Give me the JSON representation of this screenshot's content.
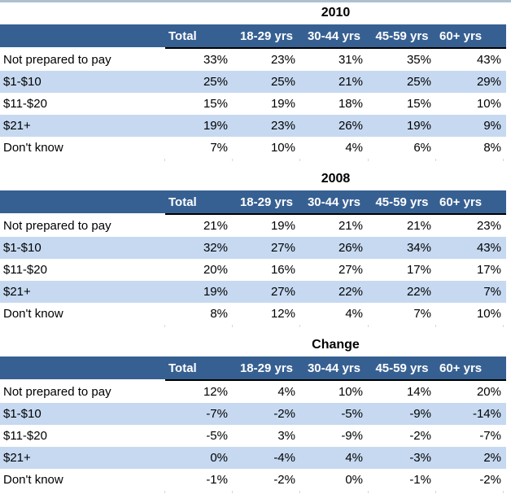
{
  "styles": {
    "header_bg": "#376092",
    "header_text": "#FFFFFF",
    "stripe_bg": "#C6D9F1",
    "top_strip": "#AEBFD0"
  },
  "chart_data": [
    {
      "type": "table",
      "title": "2010",
      "columns": [
        "Total",
        "18-29 yrs",
        "30-44 yrs",
        "45-59 yrs",
        "60+ yrs"
      ],
      "row_labels": [
        "Not prepared to pay",
        "$1-$10",
        "$11-$20",
        "$21+",
        "Don't know"
      ],
      "rows": [
        [
          "33%",
          "23%",
          "31%",
          "35%",
          "43%"
        ],
        [
          "25%",
          "25%",
          "21%",
          "25%",
          "29%"
        ],
        [
          "15%",
          "19%",
          "18%",
          "15%",
          "10%"
        ],
        [
          "19%",
          "23%",
          "26%",
          "19%",
          "9%"
        ],
        [
          "7%",
          "10%",
          "4%",
          "6%",
          "8%"
        ]
      ]
    },
    {
      "type": "table",
      "title": "2008",
      "columns": [
        "Total",
        "18-29 yrs",
        "30-44 yrs",
        "45-59 yrs",
        "60+ yrs"
      ],
      "row_labels": [
        "Not prepared to pay",
        "$1-$10",
        "$11-$20",
        "$21+",
        "Don't know"
      ],
      "rows": [
        [
          "21%",
          "19%",
          "21%",
          "21%",
          "23%"
        ],
        [
          "32%",
          "27%",
          "26%",
          "34%",
          "43%"
        ],
        [
          "20%",
          "16%",
          "27%",
          "17%",
          "17%"
        ],
        [
          "19%",
          "27%",
          "22%",
          "22%",
          "7%"
        ],
        [
          "8%",
          "12%",
          "4%",
          "7%",
          "10%"
        ]
      ]
    },
    {
      "type": "table",
      "title": "Change",
      "columns": [
        "Total",
        "18-29 yrs",
        "30-44 yrs",
        "45-59 yrs",
        "60+ yrs"
      ],
      "row_labels": [
        "Not prepared to pay",
        "$1-$10",
        "$11-$20",
        "$21+",
        "Don't know"
      ],
      "rows": [
        [
          "12%",
          "4%",
          "10%",
          "14%",
          "20%"
        ],
        [
          "-7%",
          "-2%",
          "-5%",
          "-9%",
          "-14%"
        ],
        [
          "-5%",
          "3%",
          "-9%",
          "-2%",
          "-7%"
        ],
        [
          "0%",
          "-4%",
          "4%",
          "-3%",
          "2%"
        ],
        [
          "-1%",
          "-2%",
          "0%",
          "-1%",
          "-2%"
        ]
      ]
    }
  ]
}
